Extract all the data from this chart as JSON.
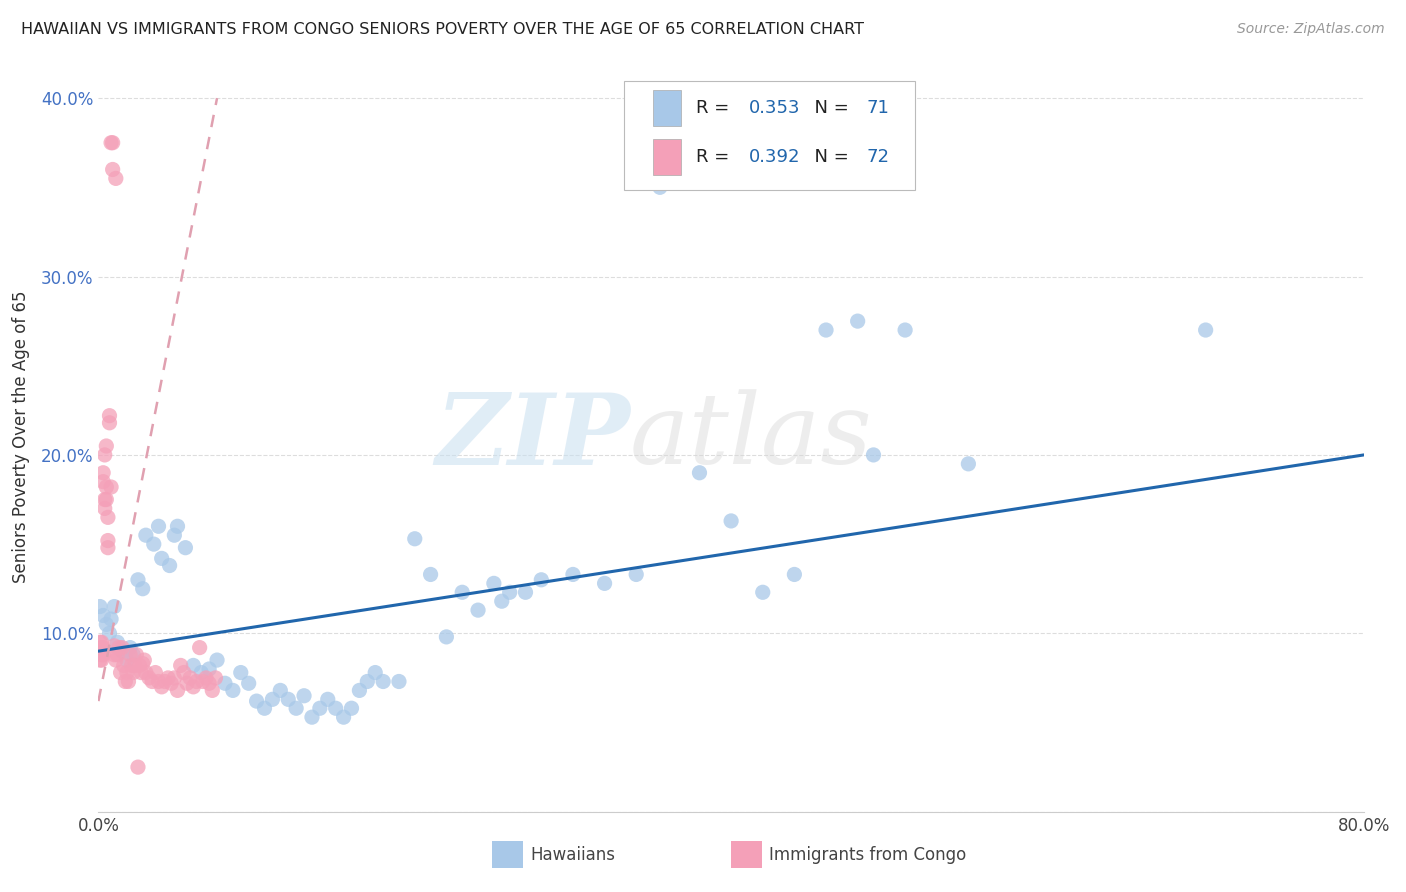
{
  "title": "HAWAIIAN VS IMMIGRANTS FROM CONGO SENIORS POVERTY OVER THE AGE OF 65 CORRELATION CHART",
  "source": "Source: ZipAtlas.com",
  "ylabel": "Seniors Poverty Over the Age of 65",
  "hawaiian_R": 0.353,
  "hawaiian_N": 71,
  "congo_R": 0.392,
  "congo_N": 72,
  "hawaiian_color": "#a8c8e8",
  "congo_color": "#f4a0b8",
  "trend_hawaiian_color": "#2166ac",
  "trend_congo_color": "#d46080",
  "trend_congo_dashed_color": "#e0a0b0",
  "legend_label_hawaiian": "Hawaiians",
  "legend_label_congo": "Immigrants from Congo",
  "watermark_zip": "ZIP",
  "watermark_atlas": "atlas",
  "xlim": [
    0.0,
    0.8
  ],
  "ylim": [
    0.0,
    0.42
  ],
  "r_n_color": "#2166ac",
  "ytick_color": "#4472c4",
  "title_color": "#222222",
  "source_color": "#999999",
  "grid_color": "#dddddd",
  "spine_color": "#cccccc"
}
